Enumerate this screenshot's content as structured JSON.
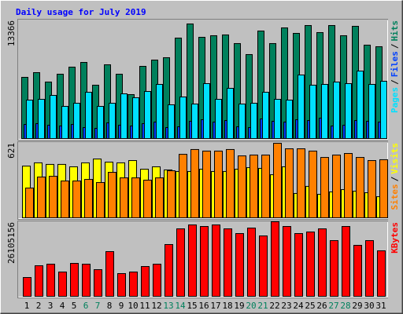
{
  "chart_data": [
    {
      "type": "bar",
      "title": "Daily usage for July 2019",
      "legend_separator": "/",
      "ylim": [
        0,
        13366
      ],
      "series": [
        {
          "name": "Pages",
          "color": "#00e0ff",
          "values": [
            4486,
            4577,
            5035,
            3754,
            4120,
            5401,
            3754,
            4120,
            5218,
            4761,
            5493,
            6317,
            3937,
            4852,
            4028,
            6408,
            4577,
            5859,
            4028,
            4120,
            5401,
            4577,
            4486,
            7415,
            6225,
            6317,
            6591,
            6408,
            7873,
            6317,
            6683
          ]
        },
        {
          "name": "Files",
          "color": "#0040ff",
          "values": [
            1648,
            1739,
            1556,
            1465,
            1648,
            1282,
            1190,
            1831,
            1556,
            1465,
            1739,
            1922,
            1282,
            1373,
            2014,
            2197,
            1922,
            2105,
            1373,
            1282,
            2288,
            2014,
            1922,
            2197,
            2105,
            2380,
            1465,
            1556,
            2105,
            2014,
            1922
          ]
        },
        {
          "name": "Hits",
          "color": "#00805c",
          "values": [
            7141,
            7690,
            6592,
            7507,
            8331,
            8880,
            6225,
            8605,
            7507,
            5127,
            8422,
            9155,
            9430,
            11719,
            13366,
            11811,
            11994,
            12086,
            11079,
            9796,
            12542,
            11079,
            12908,
            12268,
            13183,
            12360,
            13183,
            11994,
            13092,
            10896,
            10713
          ]
        }
      ]
    },
    {
      "type": "bar",
      "legend_separator": "/",
      "ylim": [
        0,
        621
      ],
      "series": [
        {
          "name": "Sites",
          "color": "#ff8000",
          "values": [
            248,
            340,
            346,
            307,
            307,
            320,
            294,
            379,
            333,
            333,
            314,
            333,
            392,
            529,
            569,
            556,
            556,
            569,
            516,
            523,
            523,
            621,
            575,
            575,
            556,
            503,
            523,
            536,
            503,
            477,
            484
          ]
        },
        {
          "name": "Visits",
          "color": "#ffff00",
          "values": [
            431,
            458,
            445,
            445,
            425,
            458,
            490,
            464,
            458,
            477,
            405,
            425,
            399,
            386,
            386,
            405,
            386,
            386,
            405,
            418,
            412,
            359,
            425,
            203,
            262,
            196,
            216,
            235,
            222,
            209,
            176
          ]
        }
      ]
    },
    {
      "type": "bar",
      "ylim": [
        0,
        26105156
      ],
      "categories": [
        "1",
        "2",
        "3",
        "4",
        "5",
        "6",
        "7",
        "8",
        "9",
        "10",
        "11",
        "12",
        "13",
        "14",
        "15",
        "16",
        "17",
        "18",
        "19",
        "20",
        "21",
        "22",
        "23",
        "24",
        "25",
        "26",
        "27",
        "28",
        "29",
        "30",
        "31"
      ],
      "weekend_index": [
        5,
        6,
        12,
        13,
        19,
        20,
        26,
        27
      ],
      "weekend_color": "#00805c",
      "series": [
        {
          "name": "KBytes",
          "color": "#ff0000",
          "values": [
            6594984,
            10716849,
            11266412,
            8518521,
            11541203,
            11266412,
            9342894,
            15663087,
            7968939,
            8518521,
            10442058,
            11266412,
            18136206,
            23632026,
            25005981,
            24456399,
            25005981,
            23632026,
            21983280,
            23906817,
            21158907,
            26105156,
            24456399,
            21983280,
            22532862,
            23632026,
            19510161,
            24456399,
            17861415,
            19510161,
            15937878
          ]
        }
      ]
    }
  ]
}
